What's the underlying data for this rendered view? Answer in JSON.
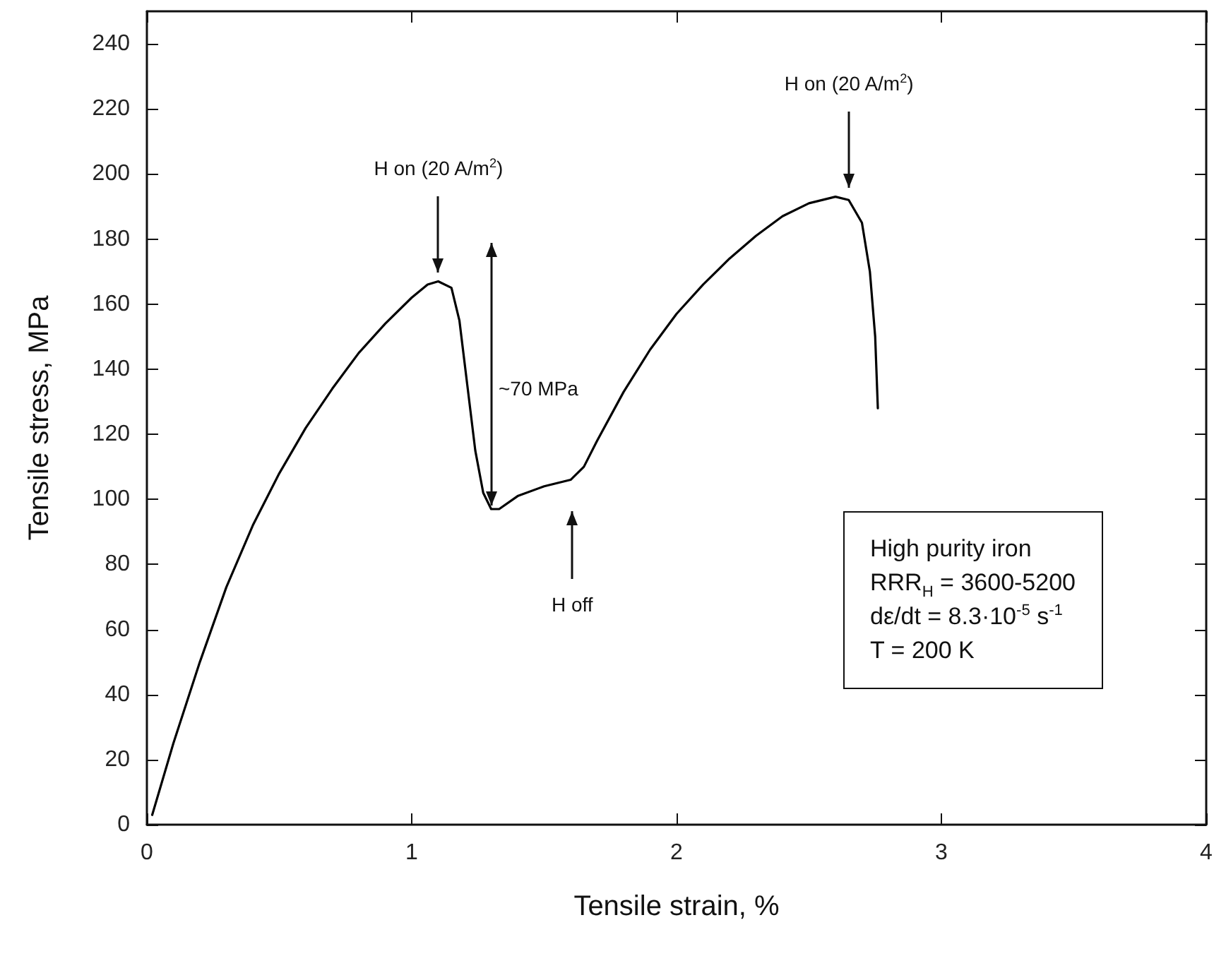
{
  "chart_data": {
    "type": "line",
    "xlabel": "Tensile strain, %",
    "ylabel": "Tensile stress, MPa",
    "xlim": [
      0,
      4
    ],
    "xticks": [
      0,
      1,
      2,
      3,
      4
    ],
    "ylim": [
      0,
      250
    ],
    "yticks": [
      0,
      20,
      40,
      60,
      80,
      100,
      120,
      140,
      160,
      180,
      200,
      220,
      240
    ],
    "marker": "none",
    "line_style": "solid",
    "series": [
      {
        "color": "#000000",
        "x": [
          0.02,
          0.1,
          0.2,
          0.3,
          0.4,
          0.5,
          0.6,
          0.7,
          0.8,
          0.9,
          1.0,
          1.06,
          1.1,
          1.15,
          1.18,
          1.21,
          1.24,
          1.27,
          1.3,
          1.33,
          1.4,
          1.5,
          1.6,
          1.65,
          1.7,
          1.8,
          1.9,
          2.0,
          2.1,
          2.2,
          2.3,
          2.4,
          2.5,
          2.6,
          2.65,
          2.7,
          2.73,
          2.75,
          2.76
        ],
        "values": [
          3,
          25,
          50,
          73,
          92,
          108,
          122,
          134,
          145,
          154,
          162,
          166,
          167,
          165,
          155,
          135,
          115,
          102,
          97,
          97,
          101,
          104,
          106,
          110,
          118,
          133,
          146,
          157,
          166,
          174,
          181,
          187,
          191,
          193,
          192,
          185,
          170,
          150,
          128
        ]
      }
    ],
    "annotations": [
      {
        "text": "H on (20 A/m$^{2}$)",
        "x": 1.1,
        "y": 167
      },
      "H off",
      "~70 MPa",
      {
        "text": "H on (20 A/m$^{2}$)",
        "x": 2.65,
        "y": 193
      },
      "High purity iron",
      "RRR$_{H}$ = 3600-5200",
      "dε/dt = 8.3·10$^{-5}$ s$^{-1}$",
      "T = 200 K"
    ]
  }
}
